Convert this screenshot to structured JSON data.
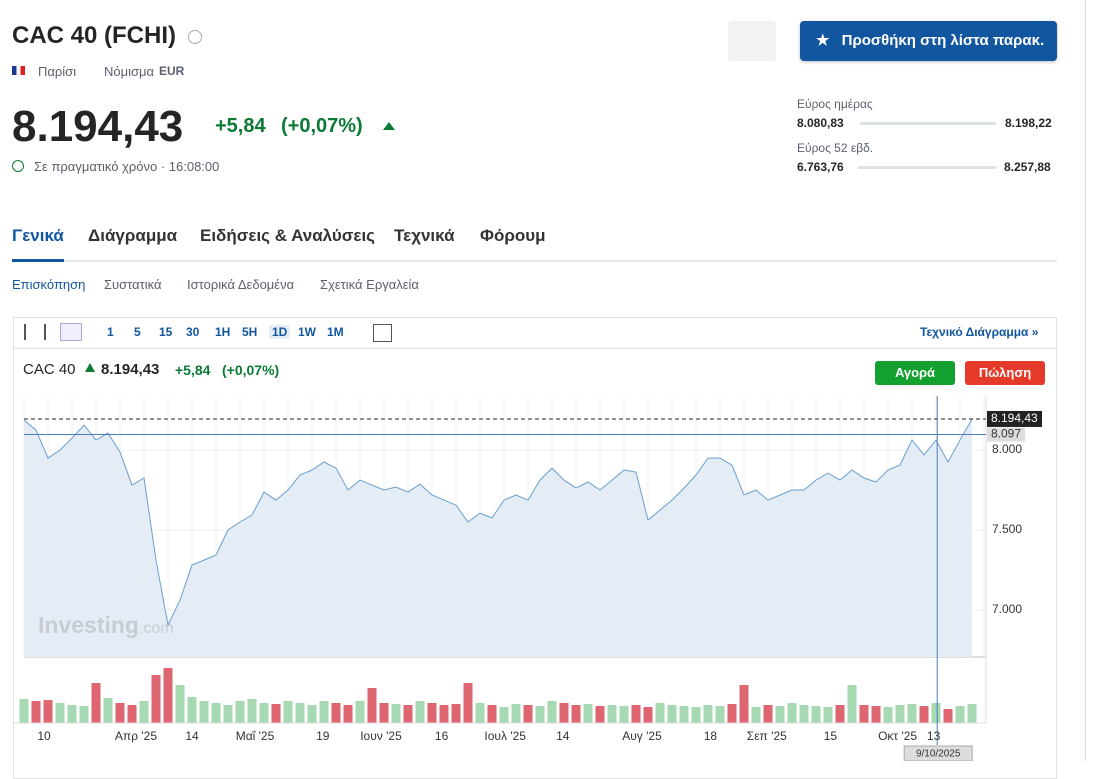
{
  "header": {
    "title": "CAC 40 (FCHI)",
    "exchange": "Παρίσι",
    "currency_label": "Νόμισμα",
    "currency": "EUR",
    "price": "8.194,43",
    "change": "+5,84",
    "change_pct": "(+0,07%)",
    "realtime": "Σε πραγματικό χρόνο · 16:08:00",
    "watchlist_button": "Προσθήκη στη λίστα παρακ."
  },
  "ranges": [
    {
      "label": "Εύρος ημέρας",
      "low": "8.080,83",
      "high": "8.198,22"
    },
    {
      "label": "Εύρος 52 εβδ.",
      "low": "6.763,76",
      "high": "8.257,88"
    }
  ],
  "tabs": [
    "Γενικά",
    "Διάγραμμα",
    "Ειδήσεις & Αναλύσεις",
    "Τεχνικά",
    "Φόρουμ"
  ],
  "subtabs": [
    "Επισκόπηση",
    "Συστατικά",
    "Ιστορικά Δεδομένα",
    "Σχετικά Εργαλεία"
  ],
  "toolbar": {
    "intervals": [
      "1",
      "5",
      "15",
      "30",
      "1H",
      "5H",
      "1D",
      "1W",
      "1M"
    ],
    "link": "Τεχνικό Διάγραμμα »"
  },
  "chart_header": {
    "name": "CAC 40",
    "price": "8.194,43",
    "change": "+5,84",
    "change_pct": "(+0,07%)",
    "buy": "Αγορά",
    "sell": "Πώληση"
  },
  "watermark": {
    "brand": "Investing",
    ".com": ".com"
  },
  "chart_data": {
    "type": "area",
    "color": "#6a9fd0",
    "values": [
      8187,
      8125,
      7950,
      8000,
      8075,
      8156,
      8062,
      8106,
      7987,
      7781,
      7825,
      7312,
      6906,
      7062,
      7281,
      7312,
      7344,
      7500,
      7550,
      7594,
      7737,
      7687,
      7750,
      7844,
      7875,
      7925,
      7887,
      7750,
      7812,
      7781,
      7750,
      7769,
      7737,
      7787,
      7719,
      7687,
      7656,
      7550,
      7606,
      7575,
      7687,
      7719,
      7687,
      7812,
      7887,
      7812,
      7762,
      7800,
      7750,
      7812,
      7875,
      7862,
      7562,
      7625,
      7687,
      7762,
      7844,
      7950,
      7950,
      7906,
      7719,
      7750,
      7687,
      7719,
      7750,
      7750,
      7812,
      7856,
      7812,
      7875,
      7825,
      7800,
      7875,
      7906,
      8062,
      7969,
      8062,
      7925,
      8062,
      8194.43
    ],
    "volume": [
      24,
      22,
      23,
      20,
      18,
      17,
      40,
      25,
      20,
      18,
      22,
      48,
      55,
      38,
      26,
      22,
      20,
      18,
      22,
      24,
      20,
      19,
      22,
      20,
      18,
      22,
      20,
      18,
      22,
      35,
      20,
      19,
      18,
      22,
      20,
      18,
      19,
      40,
      20,
      18,
      16,
      19,
      18,
      17,
      22,
      20,
      18,
      19,
      17,
      18,
      17,
      18,
      16,
      20,
      18,
      17,
      16,
      18,
      17,
      19,
      38,
      16,
      18,
      17,
      20,
      18,
      17,
      16,
      18,
      38,
      18,
      17,
      16,
      18,
      19,
      17,
      20,
      14,
      17,
      19
    ],
    "xlim": [
      0,
      79
    ],
    "ylim": [
      6706,
      8338
    ],
    "yticks": [
      {
        "value": 7000,
        "label": "7.000"
      },
      {
        "value": 7500,
        "label": "7.500"
      },
      {
        "value": 8000,
        "label": "8.000"
      }
    ],
    "xticks": [
      {
        "value": 1.67,
        "label": "10"
      },
      {
        "value": 9.33,
        "label": "Απρ '25"
      },
      {
        "value": 14,
        "label": "14"
      },
      {
        "value": 19.25,
        "label": "Μαΐ '25"
      },
      {
        "value": 24.9,
        "label": "19"
      },
      {
        "value": 29.75,
        "label": "Ιουν '25"
      },
      {
        "value": 34.8,
        "label": "16"
      },
      {
        "value": 40.1,
        "label": "Ιουλ '25"
      },
      {
        "value": 44.9,
        "label": "14"
      },
      {
        "value": 51.5,
        "label": "Αυγ '25"
      },
      {
        "value": 57.2,
        "label": "18"
      },
      {
        "value": 61.9,
        "label": "Σεπ '25"
      },
      {
        "value": 67.2,
        "label": "15"
      },
      {
        "value": 72.8,
        "label": "Οκτ '25"
      },
      {
        "value": 75.8,
        "label": "13"
      }
    ],
    "last_price": {
      "value": 8194.43,
      "label": "8.194,43"
    },
    "reference_line": {
      "value": 8097,
      "label": "8.097"
    },
    "crosshair": {
      "value": 76.1,
      "label": "9/10/2025"
    }
  }
}
